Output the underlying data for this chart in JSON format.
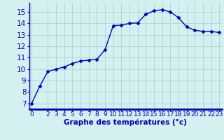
{
  "x": [
    0,
    1,
    2,
    3,
    4,
    5,
    6,
    7,
    8,
    9,
    10,
    11,
    12,
    13,
    14,
    15,
    16,
    17,
    18,
    19,
    20,
    21,
    22,
    23
  ],
  "y": [
    7.0,
    8.5,
    9.8,
    10.0,
    10.2,
    10.5,
    10.7,
    10.8,
    10.85,
    11.7,
    13.8,
    13.85,
    14.0,
    14.05,
    14.8,
    15.1,
    15.2,
    15.0,
    14.5,
    13.7,
    13.4,
    13.3,
    13.3,
    13.2
  ],
  "xlabel": "Graphe des températures (°c)",
  "ylim": [
    6.5,
    15.8
  ],
  "xlim": [
    -0.3,
    23.3
  ],
  "yticks": [
    7,
    8,
    9,
    10,
    11,
    12,
    13,
    14,
    15
  ],
  "xticks": [
    0,
    2,
    3,
    4,
    5,
    6,
    7,
    8,
    9,
    10,
    11,
    12,
    13,
    14,
    15,
    16,
    17,
    18,
    19,
    20,
    21,
    22,
    23
  ],
  "xtick_labels": [
    "0",
    "2",
    "3",
    "4",
    "5",
    "6",
    "7",
    "8",
    "9",
    "10",
    "11",
    "12",
    "13",
    "14",
    "15",
    "16",
    "17",
    "18",
    "19",
    "20",
    "21",
    "22",
    "23"
  ],
  "line_color": "#0000bb",
  "marker": "D",
  "marker_size": 2.5,
  "background_color": "#d4f0f0",
  "grid_color": "#b0d8d8",
  "xlabel_color": "#0000bb",
  "xlabel_fontsize": 7.5,
  "tick_fontsize": 6.5,
  "ytick_fontsize": 7.5,
  "tick_color": "#0000bb"
}
